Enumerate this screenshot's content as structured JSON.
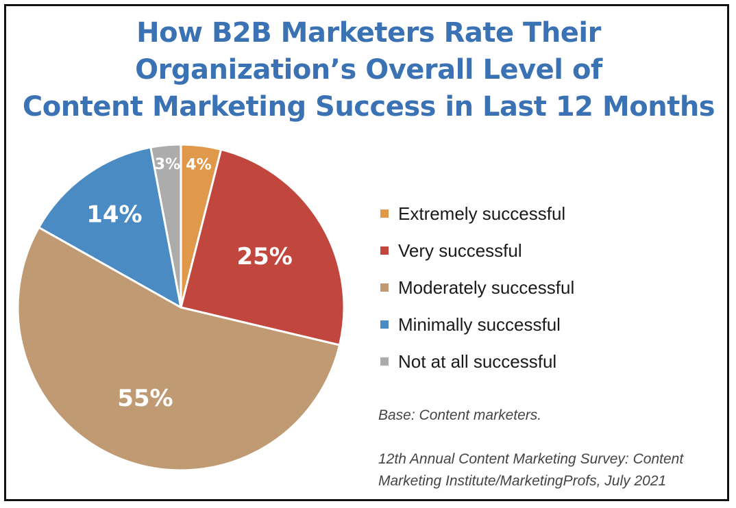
{
  "chart_data": {
    "type": "pie",
    "title": "How B2B Marketers Rate Their Organization’s Overall Level of Content Marketing Success in Last 12 Months",
    "title_lines": [
      "How B2B Marketers Rate Their",
      "Organization’s Overall Level of",
      "Content Marketing Success in Last 12 Months"
    ],
    "categories": [
      "Extremely successful",
      "Very successful",
      "Moderately successful",
      "Minimally successful",
      "Not at all successful"
    ],
    "values": [
      4,
      25,
      55,
      14,
      3
    ],
    "labels": [
      "4%",
      "25%",
      "55%",
      "14%",
      "3%"
    ],
    "unit": "%",
    "colors": [
      "#e0994b",
      "#c1473e",
      "#bf9a73",
      "#4b8bc4",
      "#acacac"
    ],
    "legend_position": "right",
    "start": "top, clockwise",
    "notes": {
      "base": "Base: Content marketers.",
      "source_lines": [
        "12th Annual Content Marketing Survey: Content",
        "Marketing Institute/MarketingProfs, July 2021"
      ]
    }
  }
}
